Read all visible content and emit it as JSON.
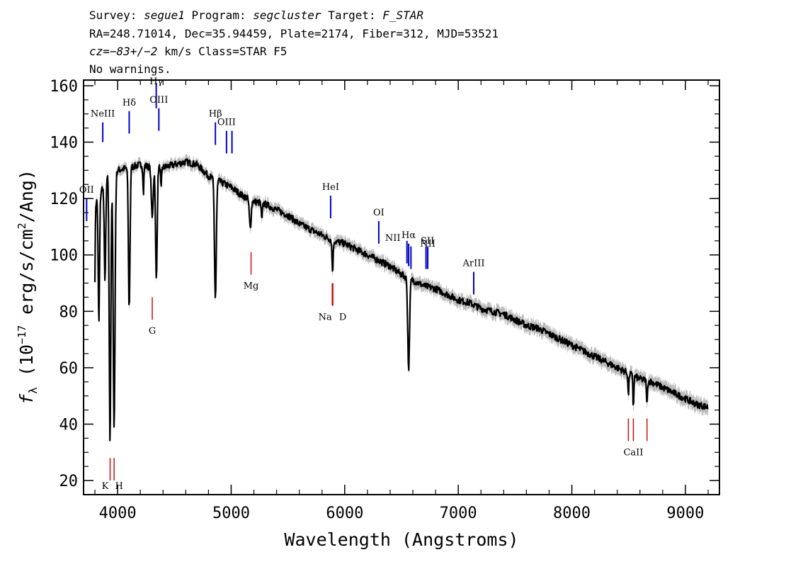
{
  "header": {
    "survey_label": "Survey:",
    "survey": "segue1",
    "program_label": "Program:",
    "program": "segcluster",
    "target_label": "Target:",
    "target": "F_STAR",
    "line2": "RA=248.71014, Dec=35.94459, Plate=2174, Fiber=312, MJD=53521",
    "cz_label": "cz=",
    "cz_value": "−83+/−2",
    "cz_rest": " km/s Class=STAR F5",
    "line4": "No warnings."
  },
  "chart_data": {
    "type": "line",
    "xlabel": "Wavelength (Angstroms)",
    "ylabel_parts": {
      "f": "f",
      "sub": "λ",
      "mid": " (10",
      "exp": "−17",
      "rest1": " erg/s/cm",
      "exp2": "2",
      "rest2": "/Ang)"
    },
    "xlim": [
      3700,
      9300
    ],
    "ylim": [
      15,
      162
    ],
    "x_ticks": [
      4000,
      5000,
      6000,
      7000,
      8000,
      9000
    ],
    "x_tick_labels": [
      "4000",
      "5000",
      "6000",
      "7000",
      "8000",
      "9000"
    ],
    "y_ticks": [
      20,
      40,
      60,
      80,
      100,
      120,
      140,
      160
    ],
    "y_tick_labels": [
      "20",
      "40",
      "60",
      "80",
      "100",
      "120",
      "140",
      "160"
    ],
    "colors": {
      "spectrum": "#000000",
      "error_band": "#bbbbbb",
      "emission": "#0000cc",
      "absorption": "#cc0000"
    },
    "spectrum": {
      "continuum": [
        [
          3800,
          118
        ],
        [
          3850,
          122
        ],
        [
          3900,
          128
        ],
        [
          4000,
          130
        ],
        [
          4100,
          131
        ],
        [
          4200,
          132
        ],
        [
          4300,
          131
        ],
        [
          4400,
          131
        ],
        [
          4500,
          132
        ],
        [
          4600,
          133
        ],
        [
          4700,
          132
        ],
        [
          4800,
          128
        ],
        [
          4900,
          126
        ],
        [
          5000,
          124
        ],
        [
          5100,
          121
        ],
        [
          5200,
          119
        ],
        [
          5300,
          118
        ],
        [
          5400,
          116
        ],
        [
          5500,
          114
        ],
        [
          5600,
          111
        ],
        [
          5700,
          109
        ],
        [
          5800,
          107
        ],
        [
          5900,
          105
        ],
        [
          6000,
          104
        ],
        [
          6100,
          102
        ],
        [
          6200,
          100
        ],
        [
          6300,
          98
        ],
        [
          6400,
          96
        ],
        [
          6500,
          93
        ],
        [
          6600,
          91
        ],
        [
          6700,
          89
        ],
        [
          6800,
          88
        ],
        [
          6900,
          86
        ],
        [
          7000,
          84
        ],
        [
          7100,
          83
        ],
        [
          7200,
          81
        ],
        [
          7300,
          80
        ],
        [
          7400,
          79
        ],
        [
          7500,
          77
        ],
        [
          7600,
          75
        ],
        [
          7700,
          74
        ],
        [
          7800,
          72
        ],
        [
          7900,
          70
        ],
        [
          8000,
          68
        ],
        [
          8100,
          66
        ],
        [
          8200,
          64
        ],
        [
          8300,
          62
        ],
        [
          8400,
          60
        ],
        [
          8500,
          58
        ],
        [
          8600,
          56
        ],
        [
          8700,
          55
        ],
        [
          8800,
          53
        ],
        [
          8900,
          51
        ],
        [
          9000,
          49
        ],
        [
          9100,
          47
        ],
        [
          9200,
          46
        ]
      ],
      "absorption_features": [
        {
          "center": 3798,
          "depth": 30,
          "width": 4
        },
        {
          "center": 3835,
          "depth": 45,
          "width": 6
        },
        {
          "center": 3889,
          "depth": 35,
          "width": 7
        },
        {
          "center": 3933,
          "depth": 95,
          "width": 7
        },
        {
          "center": 3969,
          "depth": 90,
          "width": 8
        },
        {
          "center": 4102,
          "depth": 50,
          "width": 7
        },
        {
          "center": 4227,
          "depth": 10,
          "width": 4
        },
        {
          "center": 4305,
          "depth": 18,
          "width": 8
        },
        {
          "center": 4341,
          "depth": 40,
          "width": 7
        },
        {
          "center": 4383,
          "depth": 8,
          "width": 4
        },
        {
          "center": 4861,
          "depth": 42,
          "width": 8
        },
        {
          "center": 5168,
          "depth": 10,
          "width": 8
        },
        {
          "center": 5270,
          "depth": 6,
          "width": 5
        },
        {
          "center": 5893,
          "depth": 11,
          "width": 5
        },
        {
          "center": 6563,
          "depth": 32,
          "width": 8
        },
        {
          "center": 8498,
          "depth": 8,
          "width": 4
        },
        {
          "center": 8542,
          "depth": 11,
          "width": 4
        },
        {
          "center": 8662,
          "depth": 9,
          "width": 4
        }
      ]
    },
    "line_markers": [
      {
        "label": "OII",
        "x": 3727,
        "type": "emission",
        "y0": 112,
        "y1": 120,
        "label_y": 122
      },
      {
        "label": "NeIII",
        "x": 3869,
        "type": "emission",
        "y0": 140,
        "y1": 147,
        "label_y": 149
      },
      {
        "label": "Hδ",
        "x": 4102,
        "type": "emission",
        "y0": 143,
        "y1": 151,
        "label_y": 153
      },
      {
        "label": "Hγ",
        "x": 4340,
        "type": "emission",
        "y0": 152,
        "y1": 161,
        "label_y": 163
      },
      {
        "label": "OIII",
        "x": 4363,
        "type": "emission",
        "y0": 144,
        "y1": 152,
        "label_y": 154
      },
      {
        "label": "Hβ",
        "x": 4861,
        "type": "emission",
        "y0": 139,
        "y1": 147,
        "label_y": 149
      },
      {
        "label": "OIII",
        "x": 4959,
        "type": "emission",
        "y0": 136,
        "y1": 144,
        "label_y": 146
      },
      {
        "label": "",
        "x": 5007,
        "type": "emission",
        "y0": 136,
        "y1": 144,
        "label_y": 0
      },
      {
        "label": "HeI",
        "x": 5876,
        "type": "emission",
        "y0": 113,
        "y1": 121,
        "label_y": 123
      },
      {
        "label": "OI",
        "x": 6300,
        "type": "emission",
        "y0": 104,
        "y1": 112,
        "label_y": 114
      },
      {
        "label": "NII",
        "x": 6548,
        "type": "emission",
        "y0": 97,
        "y1": 105,
        "label_y": 105
      },
      {
        "label": "Hα",
        "x": 6563,
        "type": "emission",
        "y0": 96,
        "y1": 104,
        "label_y": 106
      },
      {
        "label": "",
        "x": 6583,
        "type": "emission",
        "y0": 95,
        "y1": 103,
        "label_y": 0
      },
      {
        "label": "SII",
        "x": 6716,
        "type": "emission",
        "y0": 95,
        "y1": 103,
        "label_y": 104
      },
      {
        "label": "NII",
        "x": 6731,
        "type": "emission",
        "y0": 95,
        "y1": 103,
        "label_y": 103
      },
      {
        "label": "ArIII",
        "x": 7136,
        "type": "emission",
        "y0": 86,
        "y1": 94,
        "label_y": 96
      },
      {
        "label": "K",
        "x": 3934,
        "type": "absorption",
        "y0": 20,
        "y1": 28,
        "label_y": 17
      },
      {
        "label": "H",
        "x": 3969,
        "type": "absorption",
        "y0": 20,
        "y1": 28,
        "label_y": 17
      },
      {
        "label": "G",
        "x": 4305,
        "type": "absorption",
        "y0": 77,
        "y1": 85,
        "label_y": 72
      },
      {
        "label": "Mg",
        "x": 5175,
        "type": "absorption",
        "y0": 93,
        "y1": 101,
        "label_y": 88
      },
      {
        "label": "Na",
        "x": 5890,
        "type": "absorption",
        "y0": 82,
        "y1": 90,
        "label_y": 77
      },
      {
        "label": "D",
        "x": 5896,
        "type": "absorption",
        "y0": 82,
        "y1": 90,
        "label_y": 77
      },
      {
        "label": "",
        "x": 8498,
        "type": "absorption",
        "y0": 34,
        "y1": 42,
        "label_y": 0
      },
      {
        "label": "CaII",
        "x": 8542,
        "type": "absorption",
        "y0": 34,
        "y1": 42,
        "label_y": 29
      },
      {
        "label": "",
        "x": 8662,
        "type": "absorption",
        "y0": 34,
        "y1": 42,
        "label_y": 0
      }
    ]
  }
}
